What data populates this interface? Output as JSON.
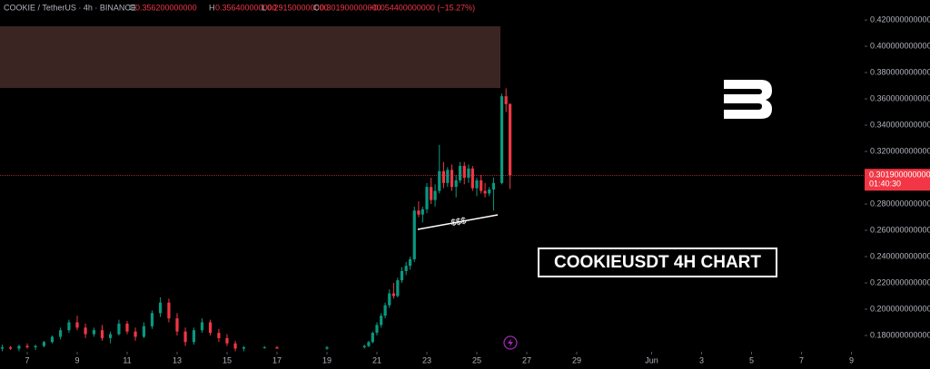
{
  "header": {
    "symbol": "COOKIE / TetherUS · 4h · BINANCE",
    "o_label": "O",
    "o": "0.356200000000",
    "h_label": "H",
    "h": "0.356400000000",
    "l_label": "L",
    "l": "0.291500000000",
    "c_label": "C",
    "c": "0.301900000000",
    "change": "−0.054400000000 (−15.27%)"
  },
  "annotations": {
    "liquidity": "$$$",
    "caption": "COOKIEUSDT 4H CHART"
  },
  "chart_data": {
    "type": "candlestick",
    "up_color": "#089981",
    "down_color": "#f23645",
    "x": [
      6.0,
      6.33,
      6.67,
      7.0,
      7.33,
      7.67,
      8.0,
      8.33,
      8.67,
      9.0,
      9.33,
      9.67,
      10.0,
      10.33,
      10.67,
      11.0,
      11.33,
      11.67,
      12.0,
      12.33,
      12.67,
      13.0,
      13.33,
      13.67,
      14.0,
      14.33,
      14.67,
      15.0,
      15.33,
      15.67,
      16.5,
      17.0,
      19.0,
      20.5,
      20.67,
      20.83,
      21.0,
      21.17,
      21.33,
      21.5,
      21.67,
      21.83,
      22.0,
      22.17,
      22.33,
      22.5,
      22.67,
      22.83,
      23.0,
      23.17,
      23.33,
      23.5,
      23.67,
      23.83,
      24.0,
      24.17,
      24.33,
      24.5,
      24.67,
      24.83,
      25.0,
      25.17,
      25.33,
      25.5,
      25.67,
      26.0,
      26.17,
      26.33
    ],
    "open": [
      0.17,
      0.171,
      0.17,
      0.172,
      0.171,
      0.172,
      0.175,
      0.179,
      0.184,
      0.19,
      0.186,
      0.181,
      0.184,
      0.178,
      0.181,
      0.189,
      0.183,
      0.179,
      0.187,
      0.197,
      0.205,
      0.193,
      0.183,
      0.175,
      0.184,
      0.19,
      0.182,
      0.178,
      0.174,
      0.17,
      0.171,
      0.171,
      0.17,
      0.171,
      0.172,
      0.175,
      0.182,
      0.188,
      0.195,
      0.203,
      0.212,
      0.21,
      0.222,
      0.229,
      0.233,
      0.238,
      0.275,
      0.272,
      0.276,
      0.293,
      0.283,
      0.29,
      0.305,
      0.296,
      0.306,
      0.293,
      0.298,
      0.309,
      0.3,
      0.307,
      0.292,
      0.298,
      0.29,
      0.288,
      0.291,
      0.296,
      0.362,
      0.3562
    ],
    "high": [
      0.173,
      0.172,
      0.173,
      0.174,
      0.173,
      0.176,
      0.18,
      0.186,
      0.192,
      0.195,
      0.189,
      0.186,
      0.188,
      0.183,
      0.192,
      0.191,
      0.186,
      0.19,
      0.199,
      0.209,
      0.208,
      0.197,
      0.186,
      0.186,
      0.193,
      0.192,
      0.185,
      0.181,
      0.176,
      0.172,
      0.172,
      0.172,
      0.172,
      0.173,
      0.176,
      0.183,
      0.19,
      0.197,
      0.205,
      0.215,
      0.22,
      0.224,
      0.232,
      0.236,
      0.24,
      0.278,
      0.282,
      0.278,
      0.296,
      0.3,
      0.295,
      0.325,
      0.312,
      0.308,
      0.31,
      0.302,
      0.312,
      0.312,
      0.31,
      0.309,
      0.3,
      0.302,
      0.296,
      0.293,
      0.3,
      0.364,
      0.368,
      0.3564
    ],
    "low": [
      0.168,
      0.169,
      0.168,
      0.17,
      0.169,
      0.171,
      0.174,
      0.177,
      0.182,
      0.184,
      0.178,
      0.179,
      0.176,
      0.174,
      0.18,
      0.181,
      0.176,
      0.178,
      0.185,
      0.194,
      0.19,
      0.18,
      0.172,
      0.173,
      0.182,
      0.18,
      0.175,
      0.172,
      0.168,
      0.168,
      0.17,
      0.17,
      0.169,
      0.17,
      0.171,
      0.174,
      0.18,
      0.186,
      0.193,
      0.201,
      0.208,
      0.209,
      0.22,
      0.226,
      0.23,
      0.236,
      0.27,
      0.266,
      0.273,
      0.28,
      0.278,
      0.288,
      0.292,
      0.293,
      0.29,
      0.285,
      0.296,
      0.295,
      0.296,
      0.29,
      0.286,
      0.288,
      0.285,
      0.286,
      0.275,
      0.295,
      0.35,
      0.2915
    ],
    "close": [
      0.171,
      0.17,
      0.172,
      0.171,
      0.172,
      0.175,
      0.179,
      0.184,
      0.19,
      0.186,
      0.181,
      0.184,
      0.178,
      0.181,
      0.189,
      0.183,
      0.179,
      0.187,
      0.197,
      0.205,
      0.193,
      0.183,
      0.175,
      0.184,
      0.19,
      0.182,
      0.178,
      0.174,
      0.17,
      0.171,
      0.171,
      0.17,
      0.171,
      0.172,
      0.175,
      0.182,
      0.188,
      0.195,
      0.203,
      0.212,
      0.21,
      0.222,
      0.229,
      0.233,
      0.238,
      0.275,
      0.272,
      0.276,
      0.293,
      0.283,
      0.29,
      0.305,
      0.296,
      0.306,
      0.293,
      0.298,
      0.309,
      0.3,
      0.307,
      0.292,
      0.298,
      0.29,
      0.288,
      0.291,
      0.296,
      0.362,
      0.356,
      0.3019
    ],
    "xlim": [
      5.909,
      40.527
    ],
    "xticks": [
      7,
      9,
      11,
      13,
      15,
      17,
      19,
      21,
      23,
      25,
      27,
      29,
      {
        "value": 32,
        "label": "Jun"
      },
      {
        "value": 34,
        "label": "3"
      },
      {
        "value": 36,
        "label": "5"
      },
      {
        "value": 38,
        "label": "7"
      },
      {
        "value": 40,
        "label": "9"
      }
    ],
    "ylim": [
      0.1676,
      0.4352
    ],
    "yticks": [
      {
        "value": 0.18,
        "label": "0.180000000000"
      },
      {
        "value": 0.2,
        "label": "0.200000000000"
      },
      {
        "value": 0.22,
        "label": "0.220000000000"
      },
      {
        "value": 0.24,
        "label": "0.240000000000"
      },
      {
        "value": 0.26,
        "label": "0.260000000000"
      },
      {
        "value": 0.28,
        "label": "0.280000000000"
      },
      {
        "value": 0.3,
        "label": "0.300000000000"
      },
      {
        "value": 0.32,
        "label": "0.320000000000"
      },
      {
        "value": 0.34,
        "label": "0.340000000000"
      },
      {
        "value": 0.36,
        "label": "0.360000000000"
      },
      {
        "value": 0.38,
        "label": "0.380000000000"
      },
      {
        "value": 0.4,
        "label": "0.400000000000"
      },
      {
        "value": 0.42,
        "label": "0.420000000000"
      }
    ],
    "last_price": {
      "value": 0.3019,
      "label": "0.301900000000"
    },
    "countdown": "01:40:30"
  }
}
